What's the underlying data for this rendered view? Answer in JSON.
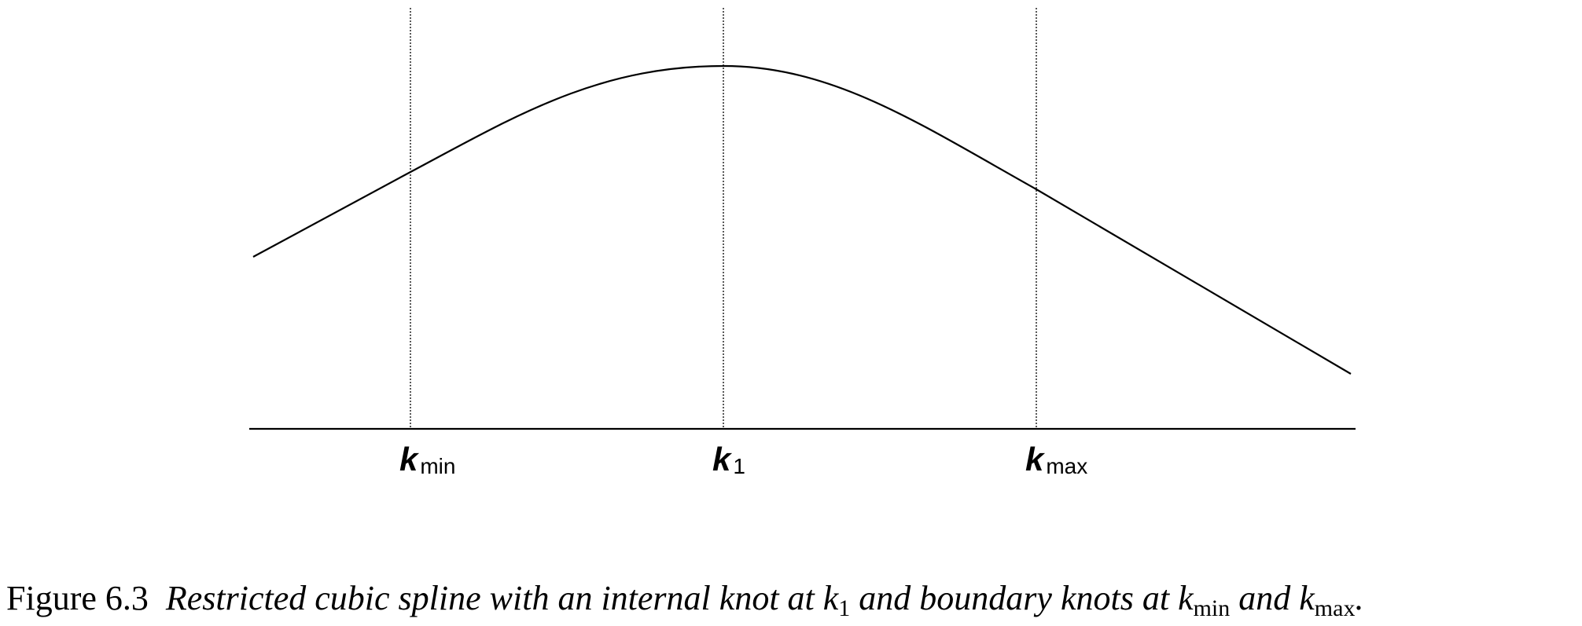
{
  "knots": [
    {
      "id": "kmin",
      "letter": "k",
      "subscript": "min",
      "position": 0.0
    },
    {
      "id": "k1",
      "letter": "k",
      "subscript": "1",
      "position": 1.0
    },
    {
      "id": "kmax",
      "letter": "k",
      "subscript": "max",
      "position": 2.0
    }
  ],
  "caption": {
    "label": "Figure 6.3",
    "text_1": "Restricted cubic spline with an internal knot at",
    "var_k1": "k",
    "sub_1": "1",
    "text_2": "and boundary knots at",
    "var_kmin": "k",
    "sub_min": "min",
    "text_3": "and",
    "var_kmax": "k",
    "sub_max": "max",
    "period": "."
  }
}
